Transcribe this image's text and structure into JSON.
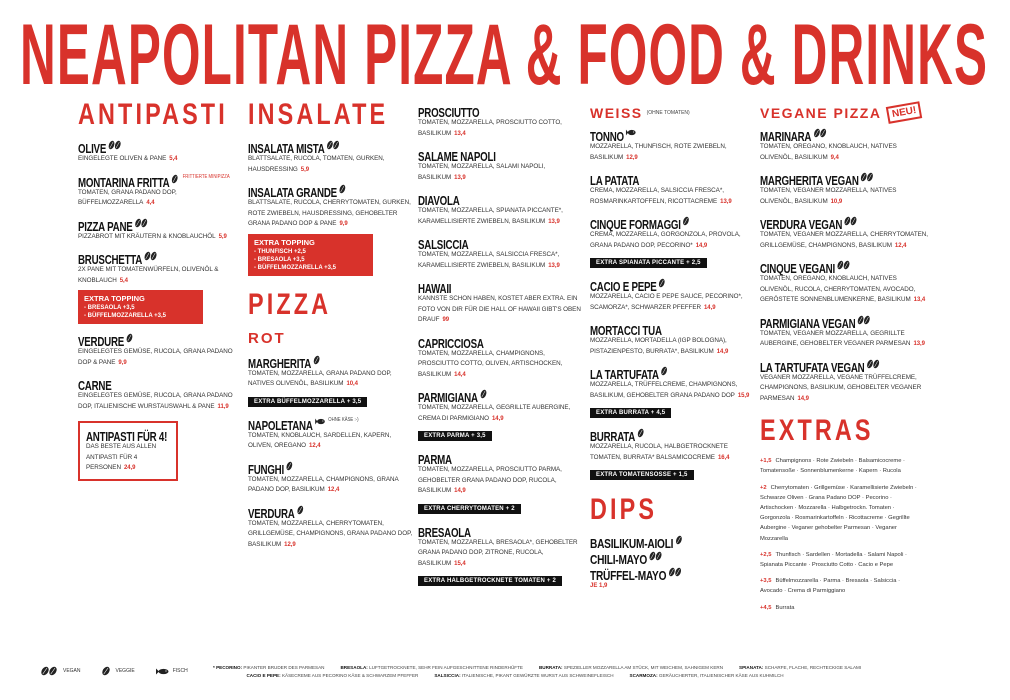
{
  "title": "NEAPOLITAN PIZZA & FOOD & DRINKS",
  "colors": {
    "accent": "#d8322b",
    "text": "#222222",
    "bar": "#111111"
  },
  "columns": [
    {
      "sections": [
        {
          "heading": "ANTIPASTI",
          "items": [
            {
              "name": "OLIVE",
              "icon": "vegan",
              "desc": "Eingelegte Oliven & Pane",
              "price": "5,4"
            },
            {
              "name": "MONTARINA FRITTA",
              "icon": "veggie",
              "note": "FRITTIERTE MINIPIZZA",
              "desc": "Tomaten, Grana Padano DOP, Büffelmozzarella",
              "price": "4,4"
            },
            {
              "name": "PIZZA PANE",
              "icon": "vegan",
              "desc": "Pizzabrot mit Kräutern & Knoblauchöl",
              "price": "5,9"
            },
            {
              "name": "BRUSCHETTA",
              "icon": "vegan",
              "desc": "2x Pane mit Tomatenwürfeln, Olivenöl & Knoblauch",
              "price": "5,4",
              "box": {
                "title": "EXTRA TOPPING",
                "lines": [
                  "- Bresaola +3,5",
                  "- Büffelmozzarella +3,5"
                ]
              }
            },
            {
              "name": "VERDURE",
              "icon": "veggie",
              "desc": "Eingelegtes Gemüse, Rucola, Grana Padano DOP & Pane",
              "price": "9,9"
            },
            {
              "name": "CARNE",
              "desc": "Eingelegtes Gemüse, Rucola, Grana Padano DOP, italienische Wurstauswahl & Pane",
              "price": "11,9"
            },
            {
              "name": "ANTIPASTI FÜR 4!",
              "outline": true,
              "desc": "Das Beste aus allen Antipasti für 4 Personen",
              "price": "24,9"
            }
          ]
        }
      ]
    },
    {
      "sections": [
        {
          "heading": "INSALATE",
          "items": [
            {
              "name": "INSALATA MISTA",
              "icon": "vegan",
              "desc": "Blattsalate, Rucola, Tomaten, Gurken, Hausdressing",
              "price": "5,9"
            },
            {
              "name": "INSALATA GRANDE",
              "icon": "veggie",
              "desc": "Blattsalate, Rucola, Cherrytomaten, Gurken, rote Zwiebeln, Hausdressing, gehobelter Grana Padano DOP & Pane",
              "price": "9,9",
              "box": {
                "title": "EXTRA TOPPING",
                "lines": [
                  "- Thunfisch +2,5",
                  "- Bresaola +3,5",
                  "- Büffelmozzarella +3,5"
                ]
              }
            }
          ]
        },
        {
          "heading": "PIZZA",
          "sub": "ROT",
          "items": [
            {
              "name": "MARGHERITA",
              "icon": "veggie",
              "desc": "Tomaten, Mozzarella, Grana Padano DOP, natives Olivenöl, Basilikum",
              "price": "10,4",
              "bar": "EXTRA BÜFFELMOZZARELLA + 3,5"
            },
            {
              "name": "NAPOLETANA",
              "icon": "fish",
              "note": "OHNE KÄSE :-)",
              "noteGray": true,
              "desc": "Tomaten, Knoblauch, Sardellen, Kapern, Oliven, Oregano",
              "price": "12,4"
            },
            {
              "name": "FUNGHI",
              "icon": "veggie",
              "desc": "Tomaten, Mozzarella, Champignons, Grana Padano DOP, Basilikum",
              "price": "12,4"
            },
            {
              "name": "VERDURA",
              "icon": "veggie",
              "desc": "Tomaten, Mozzarella, Cherrytomaten, Grillgemüse, Champignons, Grana Padano DOP, Basilikum",
              "price": "12,9"
            }
          ]
        }
      ]
    },
    {
      "sections": [
        {
          "items": [
            {
              "name": "PROSCIUTTO",
              "desc": "Tomaten, Mozzarella, Prosciutto Cotto, Basilikum",
              "price": "13,4"
            },
            {
              "name": "SALAME NAPOLI",
              "desc": "Tomaten, Mozzarella, Salami Napoli, Basilikum",
              "price": "13,9"
            },
            {
              "name": "DIAVOLA",
              "desc": "Tomaten, Mozzarella, Spianata Piccante*, karamellisierte Zwiebeln, Basilikum",
              "price": "13,9"
            },
            {
              "name": "SALSICCIA",
              "desc": "Tomaten, Mozzarella, Salsiccia Fresca*, karamellisierte Zwiebeln, Basilikum",
              "price": "13,9"
            },
            {
              "name": "HAWAII",
              "desc": "Kannste schon haben, kostet aber extra. Ein Foto von dir für die Hall of Hawaii gibt's oben drauf",
              "price": "99"
            },
            {
              "name": "CAPRICCIOSA",
              "desc": "Tomaten, Mozzarella, Champignons, Prosciutto Cotto, Oliven, Artischocken, Basilikum",
              "price": "14,4"
            },
            {
              "name": "PARMIGIANA",
              "icon": "veggie",
              "desc": "Tomaten, Mozzarella, gegrillte Aubergine, Crema di Parmigiano",
              "price": "14,9",
              "bar": "EXTRA PARMA + 3,5"
            },
            {
              "name": "PARMA",
              "desc": "Tomaten, Mozzarella, Prosciutto Parma, gehobelter Grana Padano DOP, Rucola, Basilikum",
              "price": "14,9",
              "bar": "EXTRA CHERRYTOMATEN + 2"
            },
            {
              "name": "BRESAOLA",
              "desc": "Tomaten, Mozzarella, Bresaola*, gehobelter Grana Padano DOP, Zitrone, Rucola, Basilikum",
              "price": "15,4",
              "bar": "EXTRA HALBGETROCKNETE TOMATEN + 2"
            }
          ]
        }
      ]
    },
    {
      "sections": [
        {
          "heading": "WEISS",
          "note": "(OHNE TOMATEN)",
          "small": true,
          "items": [
            {
              "name": "TONNO",
              "icon": "fish",
              "desc": "Mozzarella, Thunfisch, rote Zwiebeln, Basilikum",
              "price": "12,9"
            },
            {
              "name": "LA PATATA",
              "desc": "Crema, Mozzarella, Salsiccia Fresca*, Rosmarinkartoffeln, Ricottacreme",
              "price": "13,9"
            },
            {
              "name": "CINQUE FORMAGGI",
              "icon": "veggie",
              "desc": "Crema, Mozzarella, Gorgonzola, Provola, Grana Padano DOP, Pecorino*",
              "price": "14,9",
              "bar": "EXTRA SPIANATA PICCANTE + 2,5"
            },
            {
              "name": "CACIO E PEPE",
              "icon": "veggie",
              "desc": "Mozzarella, Cacio e Pepe Sauce, Pecorino*, Scamorza*, schwarzer Pfeffer",
              "price": "14,9"
            },
            {
              "name": "MORTACCI TUA",
              "desc": "Mozzarella, Mortadella (IGP Bologna), Pistazienpesto, Burrata*, Basilikum",
              "price": "14,9"
            },
            {
              "name": "LA TARTUFATA",
              "icon": "veggie",
              "desc": "Mozzarella, Trüffelcreme, Champignons, Basilikum, gehobelter Grana Padano DOP",
              "price": "15,9",
              "bar": "EXTRA BURRATA + 4,5"
            },
            {
              "name": "BURRATA",
              "icon": "veggie",
              "desc": "Mozzarella, Rucola, halbgetrocknete Tomaten, Burrata* Balsamicocreme",
              "price": "16,4",
              "bar": "EXTRA TOMATENSOSSE + 1,5"
            }
          ]
        },
        {
          "heading": "DIPS",
          "dips": true,
          "items": [
            {
              "name": "BASILIKUM-AIOLI",
              "icon": "veggie"
            },
            {
              "name": "CHILI-MAYO",
              "icon": "vegan"
            },
            {
              "name": "TRÜFFEL-MAYO",
              "icon": "vegan"
            }
          ],
          "price": "JE 1,9"
        }
      ]
    },
    {
      "sections": [
        {
          "heading": "VEGANE PIZZA",
          "small": true,
          "badge": "NEU!",
          "items": [
            {
              "name": "MARINARA",
              "icon": "vegan",
              "desc": "Tomaten, Oregano, Knoblauch, natives Olivenöl, Basilikum",
              "price": "9,4"
            },
            {
              "name": "MARGHERITA VEGAN",
              "icon": "vegan",
              "desc": "Tomaten, veganer Mozzarella, natives Olivenöl, Basilikum",
              "price": "10,9"
            },
            {
              "name": "VERDURA VEGAN",
              "icon": "vegan",
              "desc": "Tomaten, veganer Mozzarella, Cherrytomaten, Grillgemüse, Champignons, Basilikum",
              "price": "12,4"
            },
            {
              "name": "CINQUE VEGANI",
              "icon": "vegan",
              "desc": "Tomaten, Oregano, Knoblauch, natives Olivenöl, Rucola, Cherrytomaten, Avocado, geröstete Sonnenblumenkerne, Basilikum",
              "price": "13,4"
            },
            {
              "name": "PARMIGIANA VEGAN",
              "icon": "vegan",
              "desc": "Tomaten, veganer Mozzarella, gegrillte Aubergine, gehobelter veganer Parmesan",
              "price": "13,9"
            },
            {
              "name": "LA TARTUFATA VEGAN",
              "icon": "vegan",
              "desc": "Veganer Mozzarella, vegane Trüffelcreme, Champignons, Basilikum, gehobelter veganer Parmesan",
              "price": "14,9"
            }
          ]
        },
        {
          "heading": "EXTRAS",
          "extras": [
            {
              "price": "+1,5",
              "text": "Champignons · Rote Zwiebeln · Balsamicocreme · Tomatensoße · Sonnenblumenkerne · Kapern · Rucola"
            },
            {
              "price": "+2",
              "text": "Cherrytomaten · Grillgemüse · Karamellisierte Zwiebeln · Schwarze Oliven · Grana Padano DOP · Pecorino · Artischocken · Mozzarella · Halbgetrockn. Tomaten · Gorgonzola · Rosmarinkartoffeln · Ricottacreme · Gegrillte Aubergine · Veganer gehobelter Parmesan · Veganer Mozzarella"
            },
            {
              "price": "+2,5",
              "text": "Thunfisch · Sardellen · Mortadella · Salami Napoli · Spianata Piccante · Prosciutto Cotto · Cacio e Pepe"
            },
            {
              "price": "+3,5",
              "text": "Büffelmozzarella · Parma · Bresaola · Salsiccia · Avocado · Crema di Parmiggiano"
            },
            {
              "price": "+4,5",
              "text": "Burrata"
            }
          ]
        }
      ]
    }
  ],
  "legend": [
    {
      "icon": "vegan",
      "label": "VEGAN"
    },
    {
      "icon": "veggie",
      "label": "VEGGIE"
    },
    {
      "icon": "fish",
      "label": "FISCH"
    }
  ],
  "glossary": [
    [
      {
        "term": "* PECORINO:",
        "def": "PIKANTER BRUDER DES PARMESAN"
      },
      {
        "term": "BRESAOLA:",
        "def": "LUFTGETROCKNETE, SEHR FEIN AUFGESCHNITTENE RINDERHÜFTE"
      },
      {
        "term": "BURRATA:",
        "def": "SPEZIELLER MOZZARELLA AM STÜCK, MIT WEICHEM, SAHNIGEM KERN"
      },
      {
        "term": "SPIANATA:",
        "def": "SCHARFE, FLACHE, RECHTECKIGE SALAMI"
      }
    ],
    [
      {
        "term": "CACIO E PEPE:",
        "def": "KÄSECREME AUS PECORINO KÄSE & SCHWARZEM PFEFFER"
      },
      {
        "term": "SALSICCIA:",
        "def": "ITALIENISCHE, PIKANT GEWÜRZTE WURST AUS SCHWEINEFLEISCH"
      },
      {
        "term": "SCARMOZA:",
        "def": "GERÄUCHERTER, ITALIENISCHER KÄSE AUS KUHMILCH"
      }
    ]
  ]
}
